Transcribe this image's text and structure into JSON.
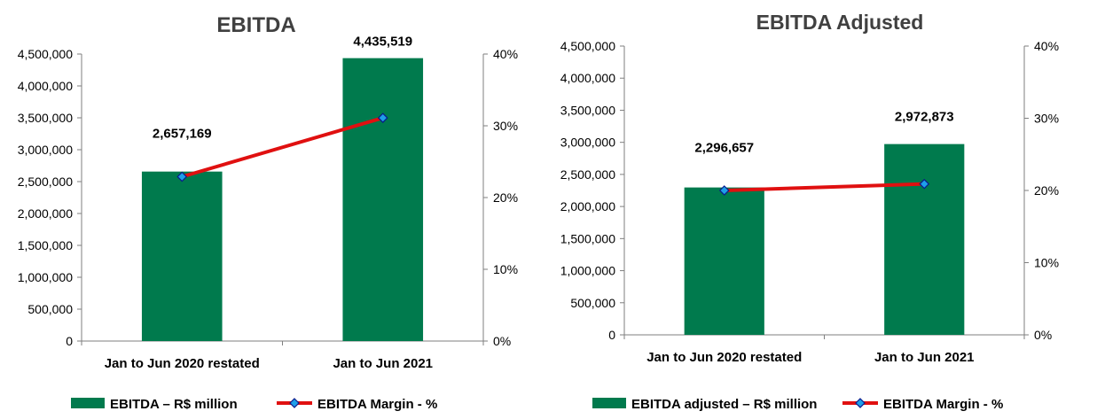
{
  "colors": {
    "bar": "#007A4D",
    "line": "#E01010",
    "marker_fill": "#1E9FE8",
    "marker_stroke": "#0A1A8C"
  },
  "chart_data": [
    {
      "type": "bar",
      "title": "EBITDA",
      "categories": [
        "Jan to Jun 2020 restated",
        "Jan to Jun 2021"
      ],
      "series": [
        {
          "name": "EBITDA – R$ million",
          "type": "bar",
          "axis": "left",
          "values": [
            2657169,
            4435519
          ]
        },
        {
          "name": "EBITDA Margin  - %",
          "type": "line",
          "axis": "right",
          "values": [
            22.9,
            31.1
          ]
        }
      ],
      "data_labels": [
        "2,657,169",
        "4,435,519"
      ],
      "y_left": {
        "ylim": [
          0,
          4500000
        ],
        "ticks": [
          "0",
          "500,000",
          "1,000,000",
          "1,500,000",
          "2,000,000",
          "2,500,000",
          "3,000,000",
          "3,500,000",
          "4,000,000",
          "4,500,000"
        ]
      },
      "y_right": {
        "ylim": [
          0,
          40
        ],
        "ticks": [
          "0%",
          "10%",
          "20%",
          "30%",
          "40%"
        ]
      },
      "grid": false,
      "legend_position": "bottom"
    },
    {
      "type": "bar",
      "title": "EBITDA Adjusted",
      "categories": [
        "Jan to Jun 2020 restated",
        "Jan to Jun 2021"
      ],
      "series": [
        {
          "name": "EBITDA adjusted  – R$ million",
          "type": "bar",
          "axis": "left",
          "values": [
            2296657,
            2972873
          ]
        },
        {
          "name": "EBITDA Margin  - %",
          "type": "line",
          "axis": "right",
          "values": [
            20.0,
            20.9
          ]
        }
      ],
      "data_labels": [
        "2,296,657",
        "2,972,873"
      ],
      "y_left": {
        "ylim": [
          0,
          4500000
        ],
        "ticks": [
          "0",
          "500,000",
          "1,000,000",
          "1,500,000",
          "2,000,000",
          "2,500,000",
          "3,000,000",
          "3,500,000",
          "4,000,000",
          "4,500,000"
        ]
      },
      "y_right": {
        "ylim": [
          0,
          40
        ],
        "ticks": [
          "0%",
          "10%",
          "20%",
          "30%",
          "40%"
        ]
      },
      "grid": false,
      "legend_position": "bottom"
    }
  ]
}
